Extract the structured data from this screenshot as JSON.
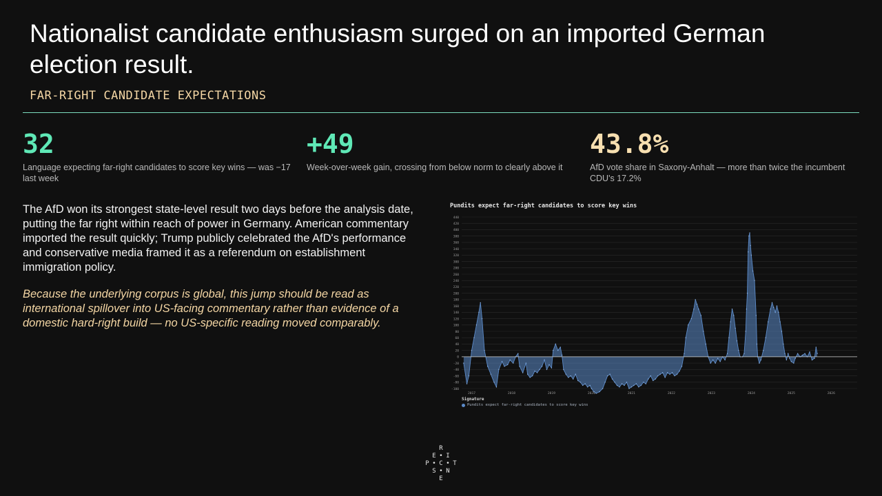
{
  "page": {
    "title": "Nationalist candidate enthusiasm surged on an imported German election result.",
    "subtitle": "FAR-RIGHT CANDIDATE EXPECTATIONS",
    "accent_color": "#7ddfc0"
  },
  "kpis": [
    {
      "value": "32",
      "color": "#5fe8b6",
      "description": "Language expecting far-right candidates to score key wins — was −17 last week"
    },
    {
      "value": "+49",
      "color": "#5fe8b6",
      "description": "Week-over-week gain, crossing from below norm to clearly above it"
    },
    {
      "value": "43.8%",
      "color": "#f7dfb0",
      "description": "AfD vote share in Saxony-Anhalt — more than twice the incumbent CDU's 17.2%"
    }
  ],
  "body": {
    "paragraph1": "The AfD won its strongest state-level result two days before the analysis date, putting the far right within reach of power in Germany. American commentary imported the result quickly; Trump publicly celebrated the AfD's performance and conservative media framed it as a referendum on establishment immigration policy.",
    "paragraph2": "Because the underlying corpus is global, this jump should be read as international spillover into US-facing commentary rather than evidence of a domestic hard-right build — no US-specific reading moved comparably."
  },
  "chart_data": {
    "type": "area",
    "title": "Pundits expect far-right candidates to score key wins",
    "legend_title": "Signature",
    "series": [
      {
        "name": "Pundits expect far-right candidates to score key wins",
        "color": "#5b8ac8",
        "points": [
          [
            2016.8,
            -20
          ],
          [
            2016.88,
            -85
          ],
          [
            2016.93,
            -60
          ],
          [
            2017.0,
            20
          ],
          [
            2017.06,
            60
          ],
          [
            2017.12,
            100
          ],
          [
            2017.18,
            140
          ],
          [
            2017.22,
            170
          ],
          [
            2017.26,
            120
          ],
          [
            2017.32,
            20
          ],
          [
            2017.4,
            -30
          ],
          [
            2017.48,
            -55
          ],
          [
            2017.56,
            -80
          ],
          [
            2017.62,
            -95
          ],
          [
            2017.68,
            -40
          ],
          [
            2017.76,
            -15
          ],
          [
            2017.82,
            -30
          ],
          [
            2017.9,
            -25
          ],
          [
            2017.96,
            -10
          ],
          [
            2018.04,
            -20
          ],
          [
            2018.1,
            0
          ],
          [
            2018.16,
            10
          ],
          [
            2018.2,
            -30
          ],
          [
            2018.28,
            -50
          ],
          [
            2018.36,
            -20
          ],
          [
            2018.4,
            -55
          ],
          [
            2018.46,
            -65
          ],
          [
            2018.52,
            -60
          ],
          [
            2018.58,
            -45
          ],
          [
            2018.64,
            -50
          ],
          [
            2018.7,
            -40
          ],
          [
            2018.76,
            -30
          ],
          [
            2018.82,
            -10
          ],
          [
            2018.88,
            -40
          ],
          [
            2018.94,
            -25
          ],
          [
            2019.0,
            -35
          ],
          [
            2019.04,
            20
          ],
          [
            2019.1,
            40
          ],
          [
            2019.16,
            20
          ],
          [
            2019.22,
            30
          ],
          [
            2019.26,
            5
          ],
          [
            2019.3,
            -40
          ],
          [
            2019.36,
            -55
          ],
          [
            2019.42,
            -65
          ],
          [
            2019.48,
            -60
          ],
          [
            2019.54,
            -70
          ],
          [
            2019.6,
            -55
          ],
          [
            2019.66,
            -75
          ],
          [
            2019.72,
            -80
          ],
          [
            2019.78,
            -90
          ],
          [
            2019.84,
            -85
          ],
          [
            2019.9,
            -95
          ],
          [
            2019.96,
            -90
          ],
          [
            2020.0,
            -100
          ],
          [
            2020.06,
            -110
          ],
          [
            2020.12,
            -115
          ],
          [
            2020.2,
            -110
          ],
          [
            2020.28,
            -100
          ],
          [
            2020.34,
            -80
          ],
          [
            2020.4,
            -60
          ],
          [
            2020.46,
            -55
          ],
          [
            2020.52,
            -70
          ],
          [
            2020.58,
            -80
          ],
          [
            2020.64,
            -90
          ],
          [
            2020.7,
            -95
          ],
          [
            2020.76,
            -85
          ],
          [
            2020.82,
            -90
          ],
          [
            2020.88,
            -80
          ],
          [
            2020.94,
            -100
          ],
          [
            2021.0,
            -95
          ],
          [
            2021.06,
            -90
          ],
          [
            2021.12,
            -85
          ],
          [
            2021.18,
            -95
          ],
          [
            2021.24,
            -90
          ],
          [
            2021.3,
            -80
          ],
          [
            2021.36,
            -85
          ],
          [
            2021.42,
            -70
          ],
          [
            2021.48,
            -60
          ],
          [
            2021.54,
            -75
          ],
          [
            2021.6,
            -70
          ],
          [
            2021.66,
            -60
          ],
          [
            2021.72,
            -55
          ],
          [
            2021.78,
            -50
          ],
          [
            2021.84,
            -65
          ],
          [
            2021.9,
            -50
          ],
          [
            2021.96,
            -55
          ],
          [
            2022.02,
            -50
          ],
          [
            2022.08,
            -60
          ],
          [
            2022.14,
            -55
          ],
          [
            2022.2,
            -45
          ],
          [
            2022.26,
            -30
          ],
          [
            2022.32,
            10
          ],
          [
            2022.36,
            60
          ],
          [
            2022.42,
            100
          ],
          [
            2022.5,
            120
          ],
          [
            2022.56,
            150
          ],
          [
            2022.6,
            180
          ],
          [
            2022.64,
            165
          ],
          [
            2022.68,
            150
          ],
          [
            2022.74,
            130
          ],
          [
            2022.8,
            80
          ],
          [
            2022.86,
            40
          ],
          [
            2022.92,
            0
          ],
          [
            2022.98,
            -20
          ],
          [
            2023.04,
            -10
          ],
          [
            2023.1,
            -20
          ],
          [
            2023.16,
            -5
          ],
          [
            2023.22,
            -15
          ],
          [
            2023.28,
            0
          ],
          [
            2023.34,
            -10
          ],
          [
            2023.4,
            10
          ],
          [
            2023.44,
            60
          ],
          [
            2023.48,
            110
          ],
          [
            2023.52,
            150
          ],
          [
            2023.56,
            130
          ],
          [
            2023.6,
            90
          ],
          [
            2023.64,
            50
          ],
          [
            2023.68,
            20
          ],
          [
            2023.72,
            0
          ],
          [
            2023.78,
            0
          ],
          [
            2023.82,
            10
          ],
          [
            2023.86,
            80
          ],
          [
            2023.88,
            150
          ],
          [
            2023.9,
            200
          ],
          [
            2023.92,
            330
          ],
          [
            2023.94,
            380
          ],
          [
            2023.96,
            390
          ],
          [
            2023.98,
            350
          ],
          [
            2024.0,
            320
          ],
          [
            2024.04,
            270
          ],
          [
            2024.08,
            240
          ],
          [
            2024.12,
            130
          ],
          [
            2024.14,
            40
          ],
          [
            2024.16,
            0
          ],
          [
            2024.2,
            -20
          ],
          [
            2024.24,
            -10
          ],
          [
            2024.3,
            20
          ],
          [
            2024.36,
            60
          ],
          [
            2024.42,
            110
          ],
          [
            2024.48,
            150
          ],
          [
            2024.52,
            170
          ],
          [
            2024.56,
            155
          ],
          [
            2024.6,
            140
          ],
          [
            2024.64,
            160
          ],
          [
            2024.68,
            140
          ],
          [
            2024.72,
            110
          ],
          [
            2024.76,
            80
          ],
          [
            2024.8,
            40
          ],
          [
            2024.84,
            10
          ],
          [
            2024.88,
            -10
          ],
          [
            2024.92,
            10
          ],
          [
            2024.96,
            -5
          ],
          [
            2025.0,
            -15
          ],
          [
            2025.06,
            -20
          ],
          [
            2025.1,
            -5
          ],
          [
            2025.16,
            10
          ],
          [
            2025.22,
            0
          ],
          [
            2025.28,
            5
          ],
          [
            2025.34,
            10
          ],
          [
            2025.4,
            0
          ],
          [
            2025.46,
            15
          ],
          [
            2025.52,
            -10
          ],
          [
            2025.58,
            -5
          ],
          [
            2025.62,
            30
          ],
          [
            2025.65,
            10
          ]
        ]
      }
    ],
    "x_ticks": [
      "2017",
      "2018",
      "2019",
      "2020",
      "2021",
      "2022",
      "2023",
      "2024",
      "2025",
      "2026"
    ],
    "y_ticks": [
      "-100",
      "-80",
      "-60",
      "-40",
      "-20",
      "0",
      "20",
      "40",
      "60",
      "80",
      "100",
      "120",
      "140",
      "160",
      "180",
      "200",
      "220",
      "240",
      "260",
      "280",
      "300",
      "320",
      "340",
      "360",
      "380",
      "400",
      "420",
      "440"
    ],
    "xlim": [
      2016.75,
      2026.65
    ],
    "ylim": [
      -100,
      440
    ],
    "grid": true,
    "legend_position": "bottom-left"
  },
  "logo": {
    "letters": [
      "R",
      "E",
      "•",
      "I",
      "P",
      "•",
      "C",
      "•",
      "T",
      "S",
      "•",
      "N",
      "E"
    ]
  }
}
